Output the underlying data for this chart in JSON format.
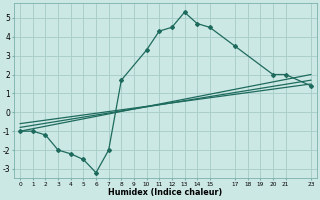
{
  "xlabel": "Humidex (Indice chaleur)",
  "bg_color": "#cce8e4",
  "line_color": "#1e6b5e",
  "grid_color": "#aacfcb",
  "xlim": [
    -0.5,
    23.5
  ],
  "ylim": [
    -3.5,
    5.8
  ],
  "xticks": [
    0,
    1,
    2,
    3,
    4,
    5,
    6,
    7,
    8,
    9,
    10,
    11,
    12,
    13,
    14,
    15,
    17,
    18,
    19,
    20,
    21,
    23
  ],
  "yticks": [
    -3,
    -2,
    -1,
    0,
    1,
    2,
    3,
    4,
    5
  ],
  "main_line_x": [
    0,
    1,
    2,
    3,
    4,
    5,
    6,
    7,
    8,
    10,
    11,
    12,
    13,
    14,
    15,
    17,
    20,
    21,
    23
  ],
  "main_line_y": [
    -1,
    -1,
    -1.2,
    -2,
    -2.2,
    -2.5,
    -3.2,
    -2.0,
    1.7,
    3.3,
    4.3,
    4.5,
    5.3,
    4.7,
    4.5,
    3.5,
    2.0,
    2.0,
    1.4
  ],
  "reg_line1_x": [
    0,
    23
  ],
  "reg_line1_y": [
    -1.0,
    2.0
  ],
  "reg_line2_x": [
    0,
    23
  ],
  "reg_line2_y": [
    -0.8,
    1.7
  ],
  "reg_line3_x": [
    0,
    23
  ],
  "reg_line3_y": [
    -0.6,
    1.5
  ]
}
